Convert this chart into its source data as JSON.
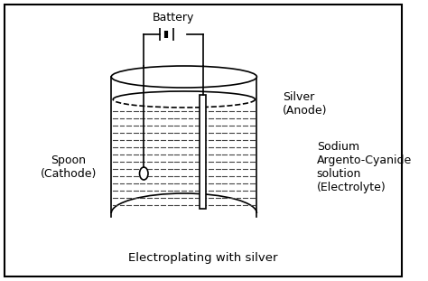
{
  "title": "Electroplating with silver",
  "label_battery": "Battery",
  "label_silver": "Silver\n(Anode)",
  "label_spoon": "Spoon\n(Cathode)",
  "label_electrolyte": "Sodium\nArgento-Cyanide\nsolution\n(Electrolyte)",
  "bg_color": "#ffffff",
  "line_color": "#000000",
  "dot_color": "#444444",
  "fig_width": 4.74,
  "fig_height": 3.11,
  "dpi": 100
}
